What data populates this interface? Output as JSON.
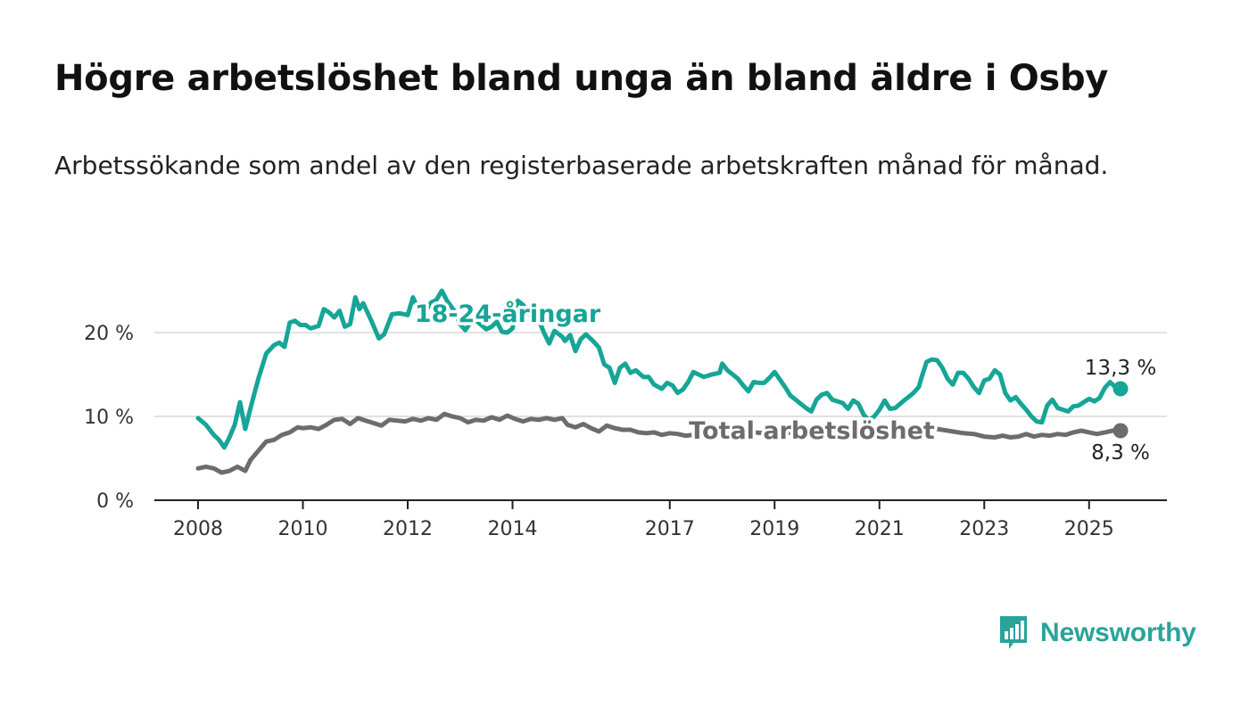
{
  "title": "Högre arbetslöshet bland unga än bland äldre i Osby",
  "subtitle": "Arbetssökande som andel av den registerbaserade arbetskraften månad för månad.",
  "brand": {
    "name": "Newsworthy",
    "icon": "newsworthy-logo-icon",
    "color": "#2aa39a"
  },
  "chart_data": {
    "type": "line",
    "title": "",
    "xlabel": "",
    "ylabel": "",
    "ylim": [
      0,
      20
    ],
    "xlim": [
      2008.0,
      2025.6
    ],
    "grid": true,
    "legend": "inline labels",
    "y_ticks": [
      {
        "value": 0,
        "label": "0 %"
      },
      {
        "value": 10,
        "label": "10 %"
      },
      {
        "value": 20,
        "label": "20 %"
      }
    ],
    "x_ticks": [
      {
        "value": 2008,
        "label": "2008"
      },
      {
        "value": 2010,
        "label": "2010"
      },
      {
        "value": 2012,
        "label": "2012"
      },
      {
        "value": 2014,
        "label": "2014"
      },
      {
        "value": 2017,
        "label": "2017"
      },
      {
        "value": 2019,
        "label": "2019"
      },
      {
        "value": 2021,
        "label": "2021"
      },
      {
        "value": 2023,
        "label": "2023"
      },
      {
        "value": 2025,
        "label": "2025"
      }
    ],
    "series": [
      {
        "name": "18-24-åringar",
        "color": "#16a596",
        "end_label": "13,3 %",
        "points": [
          [
            2008.0,
            9.8
          ],
          [
            2008.15,
            9.0
          ],
          [
            2008.3,
            7.8
          ],
          [
            2008.4,
            7.2
          ],
          [
            2008.5,
            6.3
          ],
          [
            2008.6,
            7.5
          ],
          [
            2008.7,
            9.0
          ],
          [
            2008.8,
            11.7
          ],
          [
            2008.9,
            8.5
          ],
          [
            2009.0,
            11.0
          ],
          [
            2009.15,
            14.5
          ],
          [
            2009.3,
            17.5
          ],
          [
            2009.45,
            18.5
          ],
          [
            2009.55,
            18.8
          ],
          [
            2009.65,
            18.3
          ],
          [
            2009.75,
            21.2
          ],
          [
            2009.85,
            21.4
          ],
          [
            2009.95,
            20.9
          ],
          [
            2010.05,
            20.9
          ],
          [
            2010.15,
            20.5
          ],
          [
            2010.3,
            20.8
          ],
          [
            2010.4,
            22.8
          ],
          [
            2010.5,
            22.4
          ],
          [
            2010.6,
            21.8
          ],
          [
            2010.7,
            22.6
          ],
          [
            2010.8,
            20.7
          ],
          [
            2010.9,
            21.0
          ],
          [
            2011.0,
            24.2
          ],
          [
            2011.08,
            22.8
          ],
          [
            2011.15,
            23.5
          ],
          [
            2011.3,
            21.5
          ],
          [
            2011.45,
            19.3
          ],
          [
            2011.55,
            19.8
          ],
          [
            2011.7,
            22.2
          ],
          [
            2011.85,
            22.3
          ],
          [
            2012.0,
            22.1
          ],
          [
            2012.1,
            24.2
          ],
          [
            2012.2,
            22.8
          ],
          [
            2012.3,
            22.2
          ],
          [
            2012.45,
            23.6
          ],
          [
            2012.55,
            23.9
          ],
          [
            2012.65,
            25.0
          ],
          [
            2012.75,
            23.8
          ],
          [
            2012.9,
            22.5
          ],
          [
            2013.0,
            21.0
          ],
          [
            2013.1,
            20.3
          ],
          [
            2013.25,
            21.7
          ],
          [
            2013.35,
            21.2
          ],
          [
            2013.5,
            20.4
          ],
          [
            2013.6,
            20.7
          ],
          [
            2013.7,
            21.3
          ],
          [
            2013.8,
            20.1
          ],
          [
            2013.9,
            20.0
          ],
          [
            2014.0,
            20.5
          ],
          [
            2014.1,
            23.8
          ],
          [
            2014.2,
            23.3
          ],
          [
            2014.35,
            22.0
          ],
          [
            2014.5,
            21.5
          ],
          [
            2014.6,
            20.0
          ],
          [
            2014.7,
            18.7
          ],
          [
            2014.8,
            20.2
          ],
          [
            2014.95,
            19.5
          ],
          [
            2015.0,
            19.0
          ],
          [
            2015.1,
            19.7
          ],
          [
            2015.2,
            17.8
          ],
          [
            2015.3,
            19.2
          ],
          [
            2015.4,
            19.8
          ],
          [
            2015.55,
            18.9
          ],
          [
            2015.65,
            18.2
          ],
          [
            2015.75,
            16.2
          ],
          [
            2015.85,
            15.8
          ],
          [
            2015.95,
            14.0
          ],
          [
            2016.05,
            15.8
          ],
          [
            2016.15,
            16.3
          ],
          [
            2016.25,
            15.2
          ],
          [
            2016.35,
            15.5
          ],
          [
            2016.5,
            14.7
          ],
          [
            2016.6,
            14.7
          ],
          [
            2016.7,
            13.8
          ],
          [
            2016.85,
            13.3
          ],
          [
            2016.95,
            14.0
          ],
          [
            2017.05,
            13.7
          ],
          [
            2017.15,
            12.8
          ],
          [
            2017.25,
            13.2
          ],
          [
            2017.35,
            14.1
          ],
          [
            2017.45,
            15.3
          ],
          [
            2017.55,
            15.0
          ],
          [
            2017.65,
            14.7
          ],
          [
            2017.8,
            15.0
          ],
          [
            2017.95,
            15.2
          ],
          [
            2018.0,
            16.3
          ],
          [
            2018.1,
            15.5
          ],
          [
            2018.2,
            15.0
          ],
          [
            2018.3,
            14.5
          ],
          [
            2018.4,
            13.7
          ],
          [
            2018.5,
            13.0
          ],
          [
            2018.6,
            14.1
          ],
          [
            2018.7,
            14.0
          ],
          [
            2018.8,
            14.0
          ],
          [
            2018.9,
            14.6
          ],
          [
            2019.0,
            15.3
          ],
          [
            2019.1,
            14.4
          ],
          [
            2019.2,
            13.5
          ],
          [
            2019.3,
            12.5
          ],
          [
            2019.4,
            12.0
          ],
          [
            2019.5,
            11.5
          ],
          [
            2019.6,
            11.0
          ],
          [
            2019.7,
            10.6
          ],
          [
            2019.8,
            12.0
          ],
          [
            2019.9,
            12.6
          ],
          [
            2020.0,
            12.8
          ],
          [
            2020.1,
            12.0
          ],
          [
            2020.2,
            11.8
          ],
          [
            2020.3,
            11.6
          ],
          [
            2020.4,
            10.9
          ],
          [
            2020.5,
            11.9
          ],
          [
            2020.6,
            11.5
          ],
          [
            2020.7,
            10.2
          ],
          [
            2020.8,
            9.5
          ],
          [
            2020.9,
            10.0
          ],
          [
            2021.0,
            10.8
          ],
          [
            2021.1,
            11.9
          ],
          [
            2021.2,
            10.9
          ],
          [
            2021.3,
            11.0
          ],
          [
            2021.45,
            11.8
          ],
          [
            2021.55,
            12.3
          ],
          [
            2021.65,
            12.8
          ],
          [
            2021.75,
            13.5
          ],
          [
            2021.8,
            14.6
          ],
          [
            2021.9,
            16.5
          ],
          [
            2022.0,
            16.8
          ],
          [
            2022.1,
            16.7
          ],
          [
            2022.2,
            15.8
          ],
          [
            2022.3,
            14.5
          ],
          [
            2022.4,
            13.8
          ],
          [
            2022.5,
            15.2
          ],
          [
            2022.6,
            15.2
          ],
          [
            2022.7,
            14.5
          ],
          [
            2022.8,
            13.5
          ],
          [
            2022.9,
            12.8
          ],
          [
            2023.0,
            14.3
          ],
          [
            2023.1,
            14.5
          ],
          [
            2023.2,
            15.5
          ],
          [
            2023.3,
            15.0
          ],
          [
            2023.4,
            12.8
          ],
          [
            2023.5,
            11.9
          ],
          [
            2023.6,
            12.3
          ],
          [
            2023.7,
            11.5
          ],
          [
            2023.8,
            10.8
          ],
          [
            2023.9,
            10.0
          ],
          [
            2024.0,
            9.4
          ],
          [
            2024.1,
            9.3
          ],
          [
            2024.2,
            11.3
          ],
          [
            2024.3,
            12.0
          ],
          [
            2024.4,
            11.0
          ],
          [
            2024.5,
            10.8
          ],
          [
            2024.6,
            10.6
          ],
          [
            2024.7,
            11.2
          ],
          [
            2024.8,
            11.3
          ],
          [
            2024.9,
            11.7
          ],
          [
            2025.0,
            12.1
          ],
          [
            2025.1,
            11.8
          ],
          [
            2025.2,
            12.2
          ],
          [
            2025.3,
            13.4
          ],
          [
            2025.4,
            14.1
          ],
          [
            2025.5,
            13.5
          ],
          [
            2025.6,
            13.3
          ]
        ]
      },
      {
        "name": "Total arbetslöshet",
        "color": "#6e6b70",
        "end_label": "8,3 %",
        "points": [
          [
            2008.0,
            3.8
          ],
          [
            2008.15,
            4.0
          ],
          [
            2008.3,
            3.8
          ],
          [
            2008.45,
            3.3
          ],
          [
            2008.6,
            3.5
          ],
          [
            2008.75,
            4.0
          ],
          [
            2008.9,
            3.5
          ],
          [
            2009.0,
            4.8
          ],
          [
            2009.15,
            5.9
          ],
          [
            2009.3,
            7.0
          ],
          [
            2009.45,
            7.2
          ],
          [
            2009.6,
            7.8
          ],
          [
            2009.75,
            8.1
          ],
          [
            2009.9,
            8.7
          ],
          [
            2010.0,
            8.6
          ],
          [
            2010.15,
            8.7
          ],
          [
            2010.3,
            8.5
          ],
          [
            2010.45,
            9.0
          ],
          [
            2010.6,
            9.6
          ],
          [
            2010.75,
            9.7
          ],
          [
            2010.9,
            9.1
          ],
          [
            2011.05,
            9.8
          ],
          [
            2011.2,
            9.5
          ],
          [
            2011.35,
            9.2
          ],
          [
            2011.5,
            8.9
          ],
          [
            2011.65,
            9.6
          ],
          [
            2011.8,
            9.5
          ],
          [
            2011.95,
            9.4
          ],
          [
            2012.1,
            9.7
          ],
          [
            2012.25,
            9.5
          ],
          [
            2012.4,
            9.8
          ],
          [
            2012.55,
            9.6
          ],
          [
            2012.7,
            10.3
          ],
          [
            2012.85,
            10.0
          ],
          [
            2013.0,
            9.8
          ],
          [
            2013.15,
            9.3
          ],
          [
            2013.3,
            9.6
          ],
          [
            2013.45,
            9.5
          ],
          [
            2013.6,
            9.9
          ],
          [
            2013.75,
            9.6
          ],
          [
            2013.9,
            10.1
          ],
          [
            2014.05,
            9.7
          ],
          [
            2014.2,
            9.4
          ],
          [
            2014.35,
            9.7
          ],
          [
            2014.5,
            9.6
          ],
          [
            2014.65,
            9.8
          ],
          [
            2014.8,
            9.6
          ],
          [
            2014.95,
            9.8
          ],
          [
            2015.05,
            9.0
          ],
          [
            2015.2,
            8.7
          ],
          [
            2015.35,
            9.1
          ],
          [
            2015.5,
            8.6
          ],
          [
            2015.65,
            8.2
          ],
          [
            2015.8,
            8.9
          ],
          [
            2015.95,
            8.6
          ],
          [
            2016.1,
            8.4
          ],
          [
            2016.25,
            8.4
          ],
          [
            2016.4,
            8.1
          ],
          [
            2016.55,
            8.0
          ],
          [
            2016.7,
            8.1
          ],
          [
            2016.85,
            7.8
          ],
          [
            2017.0,
            8.0
          ],
          [
            2017.15,
            7.9
          ],
          [
            2017.3,
            7.7
          ],
          [
            2017.45,
            7.8
          ],
          [
            2017.6,
            8.0
          ],
          [
            2017.75,
            8.5
          ],
          [
            2017.9,
            8.7
          ],
          [
            2018.05,
            8.5
          ],
          [
            2018.2,
            8.2
          ],
          [
            2018.4,
            8.3
          ],
          [
            2018.6,
            8.1
          ],
          [
            2018.8,
            8.0
          ],
          [
            2019.0,
            8.2
          ],
          [
            2019.2,
            8.1
          ],
          [
            2019.4,
            8.0
          ],
          [
            2019.6,
            8.0
          ],
          [
            2019.8,
            8.2
          ],
          [
            2020.0,
            8.3
          ],
          [
            2020.2,
            8.0
          ],
          [
            2020.4,
            8.2
          ],
          [
            2020.6,
            8.5
          ],
          [
            2020.8,
            8.6
          ],
          [
            2021.0,
            8.8
          ],
          [
            2021.2,
            8.5
          ],
          [
            2021.4,
            8.6
          ],
          [
            2021.6,
            8.5
          ],
          [
            2021.8,
            8.7
          ],
          [
            2022.0,
            8.6
          ],
          [
            2022.2,
            8.4
          ],
          [
            2022.4,
            8.2
          ],
          [
            2022.6,
            8.0
          ],
          [
            2022.8,
            7.9
          ],
          [
            2023.0,
            7.6
          ],
          [
            2023.2,
            7.5
          ],
          [
            2023.35,
            7.7
          ],
          [
            2023.5,
            7.5
          ],
          [
            2023.65,
            7.6
          ],
          [
            2023.8,
            7.9
          ],
          [
            2023.95,
            7.6
          ],
          [
            2024.1,
            7.8
          ],
          [
            2024.25,
            7.7
          ],
          [
            2024.4,
            7.9
          ],
          [
            2024.55,
            7.8
          ],
          [
            2024.7,
            8.1
          ],
          [
            2024.85,
            8.3
          ],
          [
            2025.0,
            8.1
          ],
          [
            2025.15,
            7.9
          ],
          [
            2025.3,
            8.1
          ],
          [
            2025.45,
            8.3
          ],
          [
            2025.6,
            8.3
          ]
        ]
      }
    ]
  }
}
